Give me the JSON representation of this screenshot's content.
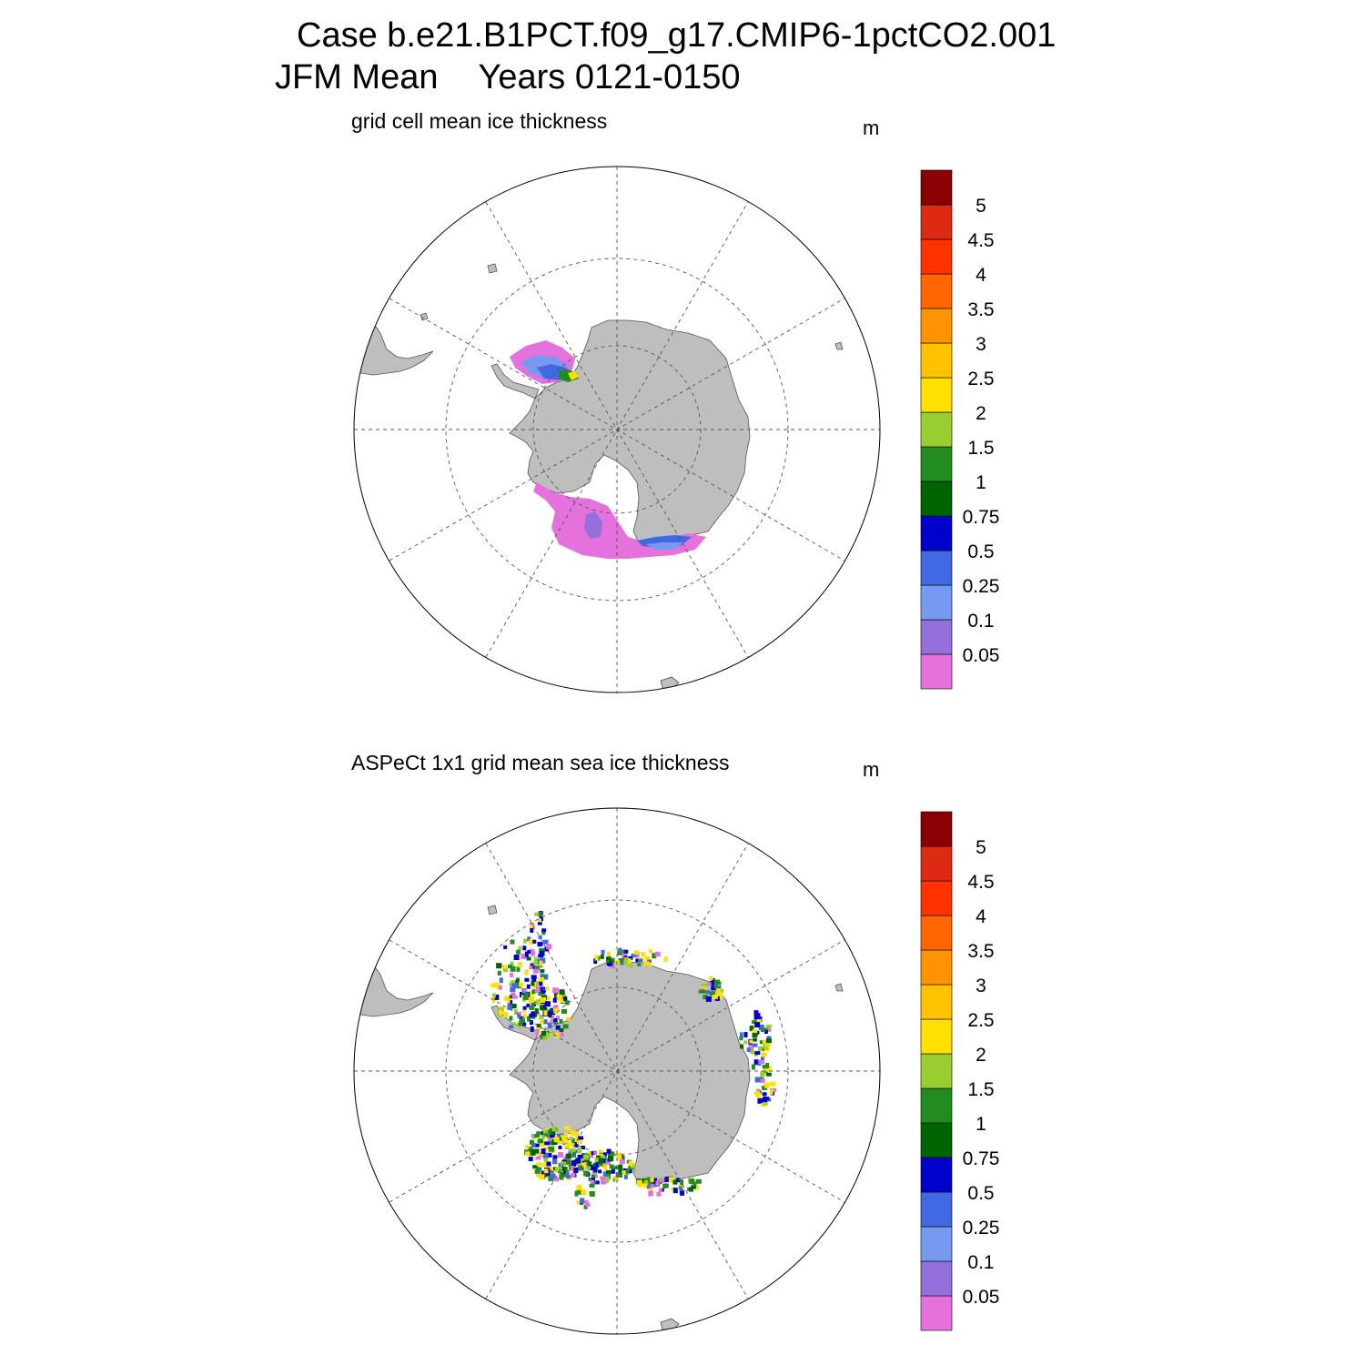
{
  "header": {
    "case_line": "Case b.e21.B1PCT.f09_g17.CMIP6-1pctCO2.001",
    "season": "JFM Mean",
    "years": "Years 0121-0150"
  },
  "panels": [
    {
      "title": "grid cell mean ice thickness",
      "units": "m"
    },
    {
      "title": "ASPeCt 1x1 grid mean sea ice thickness",
      "units": "m"
    }
  ],
  "colorbar": {
    "colors": [
      "#e471dc",
      "#9370db",
      "#7799f0",
      "#4169e1",
      "#0000cd",
      "#006400",
      "#228b22",
      "#9acd32",
      "#ffe000",
      "#ffc200",
      "#ff9400",
      "#ff6600",
      "#ff3200",
      "#dd2a13",
      "#8b0000"
    ],
    "labels": [
      "0.05",
      "0.1",
      "0.25",
      "0.5",
      "0.75",
      "1",
      "1.5",
      "2",
      "2.5",
      "3",
      "3.5",
      "4",
      "4.5",
      "5"
    ]
  },
  "map_style": {
    "land": "#bebebe",
    "coast": "#555555",
    "grid": "#555555"
  }
}
